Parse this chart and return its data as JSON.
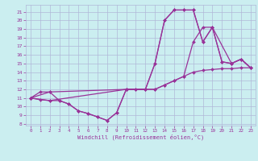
{
  "xlabel": "Windchill (Refroidissement éolien,°C)",
  "bg_color": "#cbeef0",
  "grid_color": "#b0b8d8",
  "line_color": "#993399",
  "xlim": [
    -0.5,
    23.5
  ],
  "ylim": [
    7.8,
    21.8
  ],
  "xticks": [
    0,
    1,
    2,
    3,
    4,
    5,
    6,
    7,
    8,
    9,
    10,
    11,
    12,
    13,
    14,
    15,
    16,
    17,
    18,
    19,
    20,
    21,
    22,
    23
  ],
  "yticks": [
    8,
    9,
    10,
    11,
    12,
    13,
    14,
    15,
    16,
    17,
    18,
    19,
    20,
    21
  ],
  "line1_x": [
    0,
    1,
    2,
    3,
    4,
    5,
    6,
    7,
    8,
    9,
    10,
    11,
    12,
    13,
    14,
    15,
    16,
    17,
    18,
    19,
    20,
    21,
    22,
    23
  ],
  "line1_y": [
    11.0,
    11.7,
    11.7,
    10.7,
    10.3,
    9.5,
    9.2,
    8.8,
    8.4,
    9.3,
    12.0,
    12.0,
    12.0,
    15.0,
    20.0,
    21.2,
    21.2,
    21.2,
    17.5,
    19.2,
    15.2,
    15.0,
    15.5,
    14.5
  ],
  "line2_x": [
    0,
    1,
    2,
    3,
    4,
    5,
    6,
    7,
    8,
    9,
    10,
    11,
    12,
    13,
    14,
    15,
    16,
    17,
    18,
    19,
    20,
    21,
    22,
    23
  ],
  "line2_y": [
    11.0,
    10.8,
    10.7,
    10.7,
    10.3,
    9.5,
    9.2,
    8.8,
    8.4,
    9.3,
    12.0,
    12.0,
    12.0,
    12.0,
    12.5,
    13.0,
    13.5,
    14.0,
    14.2,
    14.3,
    14.4,
    14.4,
    14.5,
    14.5
  ],
  "line3_x": [
    0,
    2,
    10,
    12,
    13,
    14,
    15,
    16,
    17,
    18,
    19,
    20,
    21,
    22,
    23
  ],
  "line3_y": [
    11.0,
    11.7,
    12.0,
    12.0,
    15.0,
    20.0,
    21.2,
    21.2,
    21.2,
    17.5,
    19.2,
    15.2,
    15.0,
    15.5,
    14.5
  ],
  "line4_x": [
    0,
    2,
    10,
    13,
    14,
    15,
    16,
    17,
    18,
    19,
    21,
    22,
    23
  ],
  "line4_y": [
    11.0,
    10.7,
    12.0,
    12.0,
    12.5,
    13.0,
    13.5,
    17.5,
    19.2,
    19.2,
    15.0,
    15.5,
    14.5
  ]
}
